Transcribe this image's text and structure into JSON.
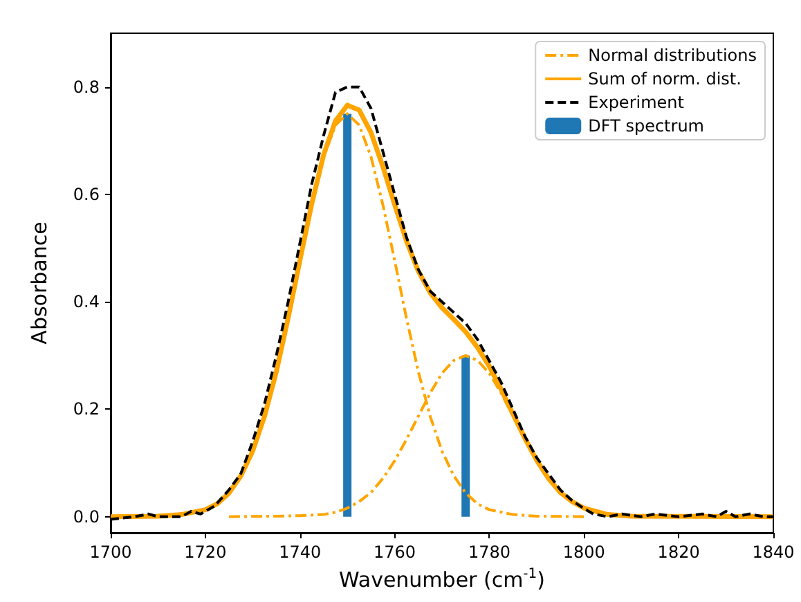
{
  "chart_data": {
    "type": "line",
    "xlabel": "Wavenumber (cm$^{-1}$)",
    "ylabel": "Absorbance",
    "xlim": [
      1700,
      1840
    ],
    "xticks": [
      1700,
      1720,
      1740,
      1760,
      1780,
      1800,
      1820,
      1840
    ],
    "ylim": [
      -0.03,
      0.9
    ],
    "yticks": [
      {
        "value": 0,
        "label": "0.0"
      },
      {
        "value": 0.2,
        "label": "0.2"
      },
      {
        "value": 0.4,
        "label": "0.4"
      },
      {
        "value": 0.6,
        "label": "0.6"
      },
      {
        "value": 0.8,
        "label": "0.8"
      }
    ],
    "grid": false,
    "legend": "top right",
    "marker": "none",
    "series": [
      {
        "name": "Normal distributions",
        "line_style": "dashdot",
        "color": "#ffa500",
        "x": [
          1700,
          1710,
          1715,
          1720,
          1722.5,
          1725,
          1727.5,
          1730,
          1732.5,
          1735,
          1737.5,
          1740,
          1742.5,
          1745,
          1747.5,
          1750,
          1752.5,
          1755,
          1757.5,
          1760,
          1762.5,
          1765,
          1767.5,
          1770,
          1772.5,
          1775,
          1777.5,
          1780,
          1785,
          1790,
          1800
        ],
        "values": [
          0,
          0.001,
          0.004,
          0.013,
          0.024,
          0.044,
          0.076,
          0.122,
          0.187,
          0.27,
          0.369,
          0.477,
          0.581,
          0.67,
          0.729,
          0.75,
          0.729,
          0.67,
          0.581,
          0.477,
          0.369,
          0.27,
          0.187,
          0.122,
          0.076,
          0.044,
          0.024,
          0.013,
          0.004,
          0.001,
          0
        ]
      },
      {
        "line_style": "dashdot",
        "color": "#ffa500",
        "x": [
          1725,
          1735,
          1740,
          1745,
          1747.5,
          1750,
          1752.5,
          1755,
          1757.5,
          1760,
          1762.5,
          1765,
          1767.5,
          1770,
          1772.5,
          1775,
          1777.5,
          1780,
          1782.5,
          1785,
          1787.5,
          1790,
          1792.5,
          1795,
          1797.5,
          1800,
          1805,
          1810,
          1820,
          1840
        ],
        "values": [
          0,
          0.001,
          0.002,
          0.004,
          0.008,
          0.016,
          0.028,
          0.045,
          0.071,
          0.104,
          0.144,
          0.187,
          0.23,
          0.267,
          0.291,
          0.3,
          0.291,
          0.267,
          0.23,
          0.187,
          0.144,
          0.104,
          0.071,
          0.045,
          0.028,
          0.016,
          0.004,
          0.001,
          0,
          0
        ]
      },
      {
        "name": "Sum of norm. dist.",
        "line_style": "solid",
        "color": "#ffa500",
        "x": [
          1700,
          1710,
          1715,
          1720,
          1722.5,
          1725,
          1727.5,
          1730,
          1732.5,
          1735,
          1737.5,
          1740,
          1742.5,
          1745,
          1747.5,
          1750,
          1752.5,
          1755,
          1757.5,
          1760,
          1762.5,
          1765,
          1767.5,
          1770,
          1772.5,
          1775,
          1777.5,
          1780,
          1782.5,
          1785,
          1787.5,
          1790,
          1792.5,
          1795,
          1797.5,
          1800,
          1805,
          1810,
          1840
        ],
        "values": [
          0,
          0.001,
          0.004,
          0.013,
          0.024,
          0.044,
          0.076,
          0.122,
          0.187,
          0.27,
          0.37,
          0.478,
          0.583,
          0.674,
          0.737,
          0.766,
          0.757,
          0.715,
          0.652,
          0.581,
          0.513,
          0.457,
          0.417,
          0.389,
          0.367,
          0.344,
          0.315,
          0.28,
          0.237,
          0.191,
          0.146,
          0.105,
          0.071,
          0.045,
          0.028,
          0.016,
          0.004,
          0.001,
          0
        ]
      },
      {
        "name": "Experiment",
        "line_style": "dashed",
        "color": "#000000",
        "x": [
          1700,
          1705,
          1708,
          1710,
          1715,
          1717,
          1719,
          1720,
          1722,
          1725,
          1727.5,
          1730,
          1732.5,
          1735,
          1737.5,
          1740,
          1742.5,
          1745,
          1747.5,
          1750,
          1752.5,
          1755,
          1757.5,
          1760,
          1762.5,
          1765,
          1767.5,
          1770,
          1772.5,
          1775,
          1777.5,
          1780,
          1782.5,
          1785,
          1787.5,
          1790,
          1792.5,
          1795,
          1797.5,
          1800,
          1802,
          1805,
          1808,
          1812,
          1815,
          1820,
          1825,
          1828,
          1830,
          1832,
          1835,
          1838,
          1840
        ],
        "values": [
          -0.005,
          0,
          0.005,
          0,
          0,
          0.01,
          0.005,
          0.01,
          0.02,
          0.05,
          0.08,
          0.14,
          0.21,
          0.3,
          0.4,
          0.51,
          0.62,
          0.71,
          0.79,
          0.8,
          0.8,
          0.76,
          0.68,
          0.6,
          0.52,
          0.46,
          0.42,
          0.4,
          0.38,
          0.36,
          0.33,
          0.29,
          0.25,
          0.2,
          0.15,
          0.11,
          0.08,
          0.05,
          0.03,
          0.015,
          0.005,
          0,
          0.005,
          0,
          0.005,
          0,
          0.005,
          0,
          0.01,
          0,
          0.005,
          0,
          0
        ]
      },
      {
        "name": "DFT spectrum",
        "type": "bar",
        "color": "#1f77b4",
        "x": [
          1750,
          1775
        ],
        "values": [
          0.75,
          0.3
        ]
      }
    ]
  }
}
